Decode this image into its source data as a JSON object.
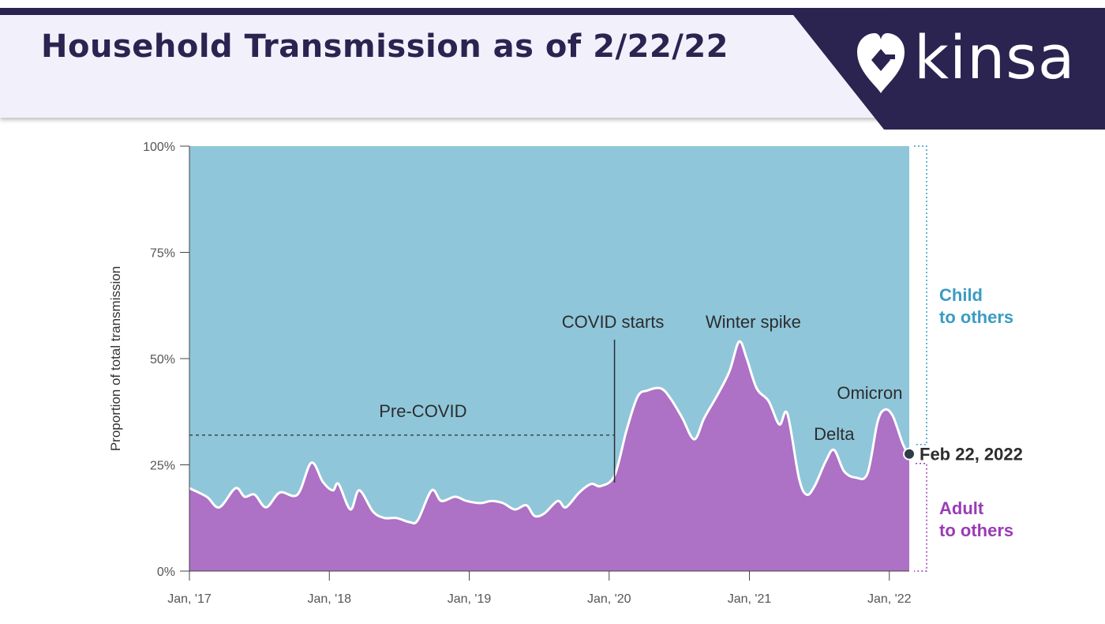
{
  "header": {
    "title": "Household Transmission as of 2/22/22",
    "brand": "kinsa",
    "logo_icon": "heart-location-pin-icon"
  },
  "colors": {
    "child": "#8fc6da",
    "adult": "#ad71c5",
    "child_text": "#3a9cc2",
    "adult_text": "#9a3bb6",
    "navy": "#2b2350"
  },
  "chart_data": {
    "type": "area",
    "title": "",
    "xlabel": "",
    "ylabel": "Proportion of total transmission",
    "x_ticks": [
      "Jan, '17",
      "Jan, '18",
      "Jan, '19",
      "Jan, '20",
      "Jan, '21",
      "Jan, '22"
    ],
    "y_ticks": [
      "0%",
      "25%",
      "50%",
      "75%",
      "100%"
    ],
    "ylim": [
      0,
      100
    ],
    "xlim": [
      "2017-01-01",
      "2022-02-22"
    ],
    "stacked": true,
    "grid": false,
    "series": [
      {
        "name": "Adult to others",
        "label": "Adult\nto others",
        "points": [
          [
            "2017-01-01",
            19.5
          ],
          [
            "2017-02-15",
            17.5
          ],
          [
            "2017-03-20",
            15
          ],
          [
            "2017-05-01",
            19.5
          ],
          [
            "2017-05-25",
            17.5
          ],
          [
            "2017-06-20",
            18
          ],
          [
            "2017-07-20",
            15
          ],
          [
            "2017-08-25",
            18.5
          ],
          [
            "2017-10-10",
            18
          ],
          [
            "2017-11-15",
            25.5
          ],
          [
            "2017-12-15",
            21
          ],
          [
            "2018-01-10",
            19
          ],
          [
            "2018-01-25",
            20.5
          ],
          [
            "2018-02-25",
            14.5
          ],
          [
            "2018-03-20",
            19
          ],
          [
            "2018-04-25",
            14
          ],
          [
            "2018-05-25",
            12.5
          ],
          [
            "2018-06-25",
            12.5
          ],
          [
            "2018-07-30",
            11.5
          ],
          [
            "2018-08-20",
            12
          ],
          [
            "2018-09-25",
            19
          ],
          [
            "2018-10-20",
            16.5
          ],
          [
            "2018-11-25",
            17.5
          ],
          [
            "2018-12-25",
            16.5
          ],
          [
            "2019-01-30",
            16
          ],
          [
            "2019-02-28",
            16.5
          ],
          [
            "2019-03-30",
            16
          ],
          [
            "2019-04-30",
            14.5
          ],
          [
            "2019-05-30",
            15.5
          ],
          [
            "2019-06-20",
            13
          ],
          [
            "2019-07-15",
            13.5
          ],
          [
            "2019-08-20",
            16.5
          ],
          [
            "2019-09-10",
            15
          ],
          [
            "2019-10-15",
            18.5
          ],
          [
            "2019-11-15",
            20.5
          ],
          [
            "2019-12-10",
            20
          ],
          [
            "2020-01-15",
            22.5
          ],
          [
            "2020-02-15",
            33
          ],
          [
            "2020-03-15",
            41
          ],
          [
            "2020-04-10",
            42.5
          ],
          [
            "2020-05-15",
            43
          ],
          [
            "2020-06-10",
            40.5
          ],
          [
            "2020-07-10",
            36
          ],
          [
            "2020-08-10",
            31
          ],
          [
            "2020-09-05",
            36
          ],
          [
            "2020-10-10",
            41.5
          ],
          [
            "2020-11-10",
            47
          ],
          [
            "2020-12-05",
            54
          ],
          [
            "2020-12-25",
            50
          ],
          [
            "2021-01-20",
            43
          ],
          [
            "2021-02-20",
            40
          ],
          [
            "2021-03-20",
            34.5
          ],
          [
            "2021-04-10",
            37
          ],
          [
            "2021-05-10",
            22
          ],
          [
            "2021-05-30",
            18
          ],
          [
            "2021-06-20",
            20
          ],
          [
            "2021-07-20",
            26
          ],
          [
            "2021-08-10",
            28.5
          ],
          [
            "2021-09-05",
            23.5
          ],
          [
            "2021-10-05",
            22
          ],
          [
            "2021-11-05",
            23
          ],
          [
            "2021-12-01",
            35
          ],
          [
            "2021-12-20",
            38
          ],
          [
            "2022-01-10",
            36.5
          ],
          [
            "2022-02-05",
            30
          ],
          [
            "2022-02-22",
            27
          ]
        ]
      },
      {
        "name": "Child to others",
        "label": "Child\nto others",
        "complement_of": "Adult to others"
      }
    ],
    "annotations": [
      {
        "text": "Pre-COVID",
        "from": "2017-01-01",
        "to": "2020-01-01",
        "y": 32,
        "style": "dashed"
      },
      {
        "text": "COVID starts",
        "x": "2020-01-15",
        "style": "vertical-line"
      },
      {
        "text": "Winter spike",
        "x": "2020-12-05"
      },
      {
        "text": "Delta",
        "x": "2021-08-10"
      },
      {
        "text": "Omicron",
        "x": "2021-12-20"
      }
    ],
    "end_point": {
      "label": "Feb 22, 2022",
      "x": "2022-02-22",
      "y": 27
    }
  }
}
